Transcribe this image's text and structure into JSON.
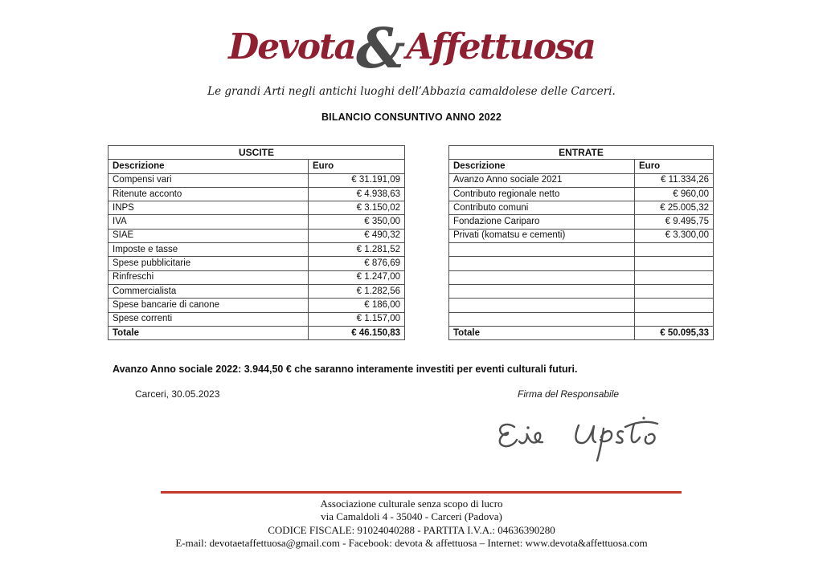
{
  "logo": {
    "word1": "Devota",
    "amp": "&",
    "word2": "Affettuosa"
  },
  "tagline": "Le grandi Arti negli antichi luoghi dell’Abbazia camaldolese delle Carceri.",
  "title": "BILANCIO CONSUNTIVO ANNO 2022",
  "tables": {
    "uscite": {
      "title": "USCITE",
      "columns": [
        "Descrizione",
        "Euro"
      ],
      "rows": [
        [
          "Compensi vari",
          "€ 31.191,09"
        ],
        [
          "Ritenute acconto",
          "€ 4.938,63"
        ],
        [
          "INPS",
          "€ 3.150,02"
        ],
        [
          "IVA",
          "€ 350,00"
        ],
        [
          "SIAE",
          "€ 490,32"
        ],
        [
          "Imposte e tasse",
          "€ 1.281,52"
        ],
        [
          "Spese pubblicitarie",
          "€ 876,69"
        ],
        [
          "Rinfreschi",
          "€ 1.247,00"
        ],
        [
          "Commercialista",
          "€ 1.282,56"
        ],
        [
          "Spese bancarie di canone",
          "€ 186,00"
        ],
        [
          "Spese correnti",
          "€ 1.157,00"
        ]
      ],
      "total_label": "Totale",
      "total_value": "€ 46.150,83"
    },
    "entrate": {
      "title": "ENTRATE",
      "columns": [
        "Descrizione",
        "Euro"
      ],
      "rows": [
        [
          "Avanzo Anno sociale 2021",
          "€ 11.334,26"
        ],
        [
          "Contributo regionale netto",
          "€ 960,00"
        ],
        [
          "Contributo comuni",
          "€ 25.005,32"
        ],
        [
          "Fondazione Cariparo",
          "€ 9.495,75"
        ],
        [
          "Privati (komatsu e cementi)",
          "€ 3.300,00"
        ],
        [
          "",
          ""
        ],
        [
          "",
          ""
        ],
        [
          "",
          ""
        ],
        [
          "",
          ""
        ],
        [
          "",
          ""
        ],
        [
          "",
          ""
        ]
      ],
      "total_label": "Totale",
      "total_value": "€ 50.095,33"
    }
  },
  "summary": "Avanzo Anno sociale 2022: 3.944,50 € che saranno interamente investiti per eventi culturali futuri.",
  "place_date": "Carceri, 30.05.2023",
  "signature_label": "Firma del Responsabile",
  "footer": {
    "line1": "Associazione culturale senza scopo di lucro",
    "line2": "via Camaldoli 4 - 35040 - Carceri (Padova)",
    "line3": "CODICE FISCALE: 91024040288 - PARTITA I.V.A.: 04636390280",
    "line4": "E-mail: devotaetaffettuosa@gmail.com -  Facebook: devota & affettuosa – Internet: www.devota&affettuosa.com"
  },
  "colors": {
    "brand_red": "#8e2031",
    "amp_gray": "#4a4a4a",
    "rule_red": "#c0392b",
    "table_border": "#4e4e4e",
    "signature_ink": "#4f4f4f"
  }
}
